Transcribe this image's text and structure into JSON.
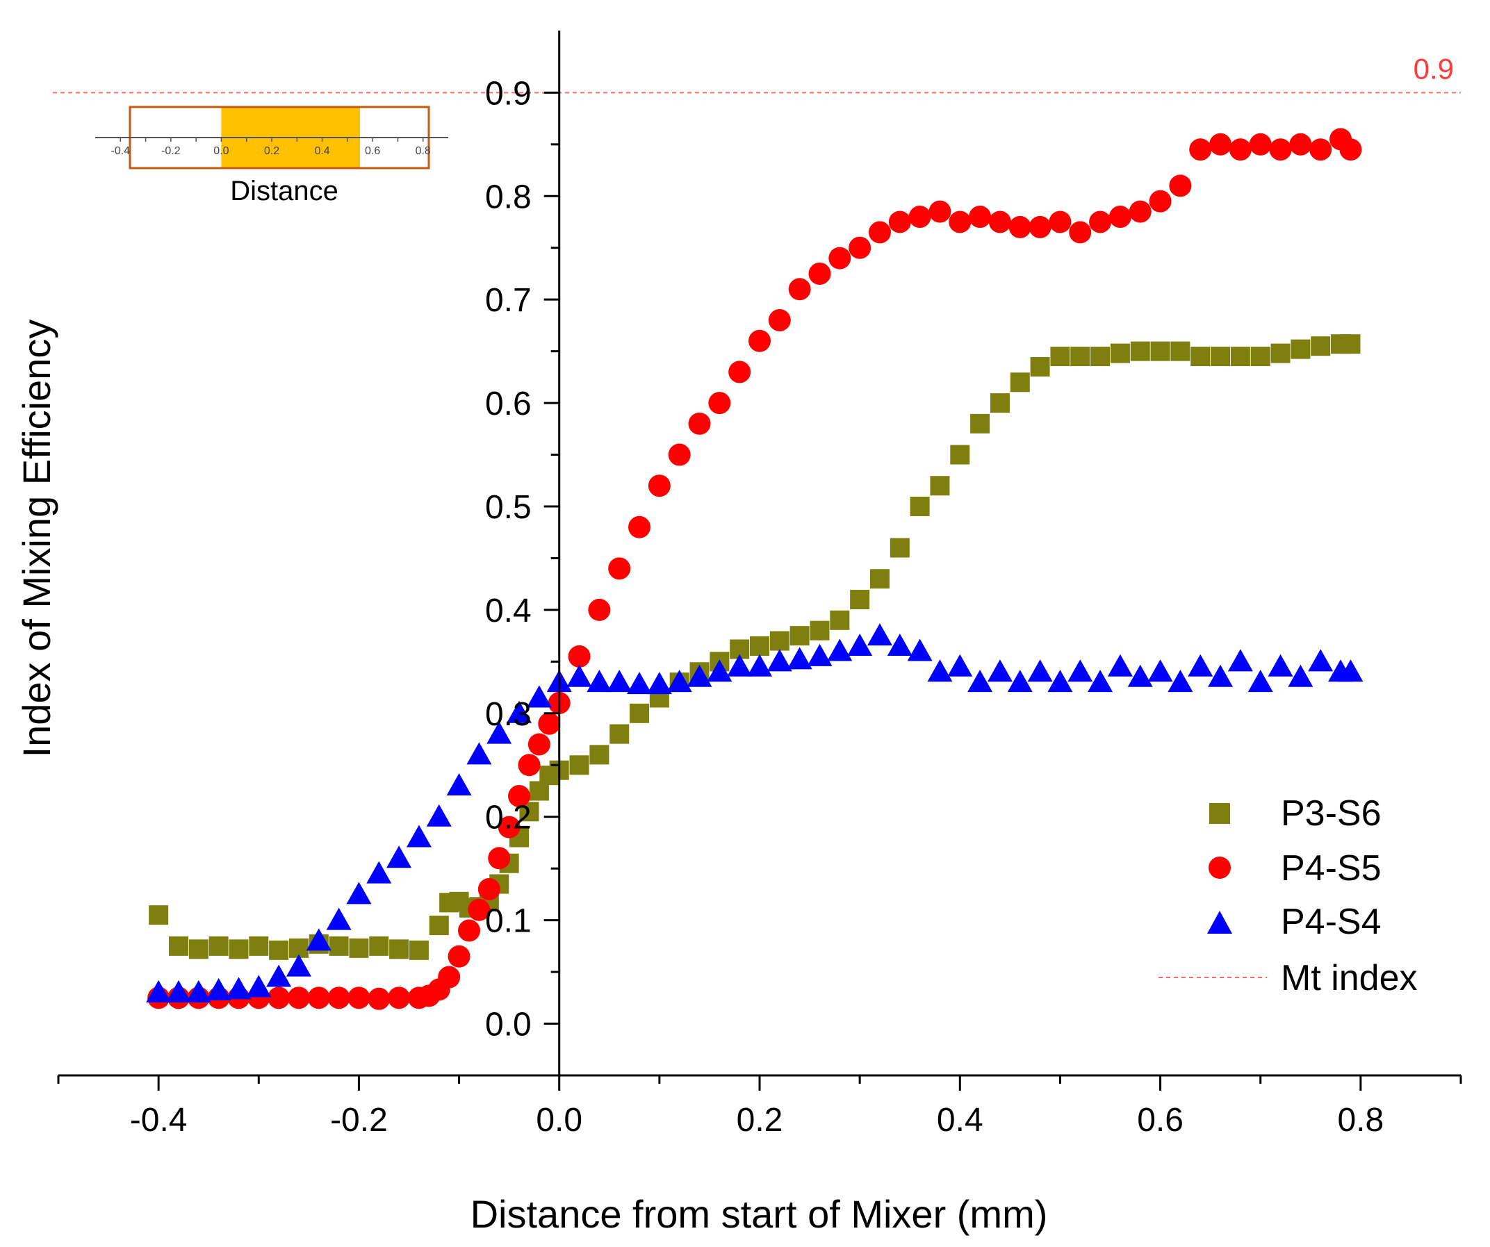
{
  "chart_data": {
    "type": "scatter",
    "title": "",
    "xlabel": "Distance from start of Mixer (mm)",
    "ylabel": "Index of Mixing Efficiency",
    "xlim": [
      -0.5,
      0.9
    ],
    "ylim": [
      -0.05,
      0.96
    ],
    "x_ticks": [
      -0.4,
      -0.2,
      0.0,
      0.2,
      0.4,
      0.6,
      0.8
    ],
    "x_tick_labels": [
      "-0.4",
      "-0.2",
      "0.0",
      "0.2",
      "0.4",
      "0.6",
      "0.8"
    ],
    "y_ticks": [
      0.0,
      0.1,
      0.2,
      0.3,
      0.4,
      0.5,
      0.6,
      0.7,
      0.8,
      0.9
    ],
    "y_tick_labels": [
      "0.0",
      "0.1",
      "0.2",
      "0.3",
      "0.4",
      "0.5",
      "0.6",
      "0.7",
      "0.8",
      "0.9"
    ],
    "legend_position": "bottom-right",
    "reference_line": {
      "name": "Mt index",
      "y": 0.9,
      "label": "0.9",
      "color": "#ff6b6b"
    },
    "series": [
      {
        "name": "P3-S6",
        "marker": "square",
        "color": "#7f7f0f",
        "x": [
          -0.4,
          -0.38,
          -0.36,
          -0.34,
          -0.32,
          -0.3,
          -0.28,
          -0.26,
          -0.24,
          -0.22,
          -0.2,
          -0.18,
          -0.16,
          -0.14,
          -0.12,
          -0.11,
          -0.1,
          -0.09,
          -0.08,
          -0.07,
          -0.06,
          -0.05,
          -0.04,
          -0.03,
          -0.02,
          -0.01,
          0.0,
          0.02,
          0.04,
          0.06,
          0.08,
          0.1,
          0.12,
          0.14,
          0.16,
          0.18,
          0.2,
          0.22,
          0.24,
          0.26,
          0.28,
          0.3,
          0.32,
          0.34,
          0.36,
          0.38,
          0.4,
          0.42,
          0.44,
          0.46,
          0.48,
          0.5,
          0.52,
          0.54,
          0.56,
          0.58,
          0.6,
          0.62,
          0.64,
          0.66,
          0.68,
          0.7,
          0.72,
          0.74,
          0.76,
          0.78,
          0.79
        ],
        "y": [
          0.105,
          0.075,
          0.072,
          0.075,
          0.072,
          0.075,
          0.071,
          0.073,
          0.077,
          0.075,
          0.073,
          0.075,
          0.072,
          0.071,
          0.095,
          0.117,
          0.118,
          0.112,
          0.113,
          0.118,
          0.135,
          0.155,
          0.18,
          0.205,
          0.225,
          0.24,
          0.245,
          0.25,
          0.26,
          0.28,
          0.3,
          0.315,
          0.33,
          0.34,
          0.35,
          0.362,
          0.365,
          0.37,
          0.375,
          0.38,
          0.39,
          0.41,
          0.43,
          0.46,
          0.5,
          0.52,
          0.55,
          0.58,
          0.6,
          0.62,
          0.635,
          0.645,
          0.645,
          0.645,
          0.648,
          0.65,
          0.65,
          0.65,
          0.645,
          0.645,
          0.645,
          0.645,
          0.648,
          0.652,
          0.655,
          0.657,
          0.657
        ]
      },
      {
        "name": "P4-S5",
        "marker": "circle",
        "color": "#ff0000",
        "x": [
          -0.4,
          -0.38,
          -0.36,
          -0.34,
          -0.32,
          -0.3,
          -0.28,
          -0.26,
          -0.24,
          -0.22,
          -0.2,
          -0.18,
          -0.16,
          -0.14,
          -0.13,
          -0.12,
          -0.11,
          -0.1,
          -0.09,
          -0.08,
          -0.07,
          -0.06,
          -0.05,
          -0.04,
          -0.03,
          -0.02,
          -0.01,
          0.0,
          0.02,
          0.04,
          0.06,
          0.08,
          0.1,
          0.12,
          0.14,
          0.16,
          0.18,
          0.2,
          0.22,
          0.24,
          0.26,
          0.28,
          0.3,
          0.32,
          0.34,
          0.36,
          0.38,
          0.4,
          0.42,
          0.44,
          0.46,
          0.48,
          0.5,
          0.52,
          0.54,
          0.56,
          0.58,
          0.6,
          0.62,
          0.64,
          0.66,
          0.68,
          0.7,
          0.72,
          0.74,
          0.76,
          0.78,
          0.79
        ],
        "y": [
          0.025,
          0.025,
          0.025,
          0.025,
          0.025,
          0.025,
          0.025,
          0.025,
          0.025,
          0.025,
          0.025,
          0.024,
          0.025,
          0.025,
          0.027,
          0.033,
          0.045,
          0.065,
          0.09,
          0.11,
          0.13,
          0.16,
          0.19,
          0.22,
          0.25,
          0.27,
          0.29,
          0.31,
          0.355,
          0.4,
          0.44,
          0.48,
          0.52,
          0.55,
          0.58,
          0.6,
          0.63,
          0.66,
          0.68,
          0.71,
          0.725,
          0.74,
          0.75,
          0.765,
          0.775,
          0.78,
          0.785,
          0.775,
          0.78,
          0.775,
          0.77,
          0.77,
          0.775,
          0.765,
          0.775,
          0.78,
          0.785,
          0.795,
          0.81,
          0.845,
          0.85,
          0.845,
          0.85,
          0.845,
          0.85,
          0.845,
          0.855,
          0.845
        ]
      },
      {
        "name": "P4-S4",
        "marker": "triangle",
        "color": "#0000ff",
        "x": [
          -0.4,
          -0.38,
          -0.36,
          -0.34,
          -0.32,
          -0.3,
          -0.28,
          -0.26,
          -0.24,
          -0.22,
          -0.2,
          -0.18,
          -0.16,
          -0.14,
          -0.12,
          -0.1,
          -0.08,
          -0.06,
          -0.04,
          -0.02,
          0.0,
          0.02,
          0.04,
          0.06,
          0.08,
          0.1,
          0.12,
          0.14,
          0.16,
          0.18,
          0.2,
          0.22,
          0.24,
          0.26,
          0.28,
          0.3,
          0.32,
          0.34,
          0.36,
          0.38,
          0.4,
          0.42,
          0.44,
          0.46,
          0.48,
          0.5,
          0.52,
          0.54,
          0.56,
          0.58,
          0.6,
          0.62,
          0.64,
          0.66,
          0.68,
          0.7,
          0.72,
          0.74,
          0.76,
          0.78,
          0.79
        ],
        "y": [
          0.03,
          0.03,
          0.03,
          0.032,
          0.033,
          0.035,
          0.045,
          0.055,
          0.08,
          0.1,
          0.125,
          0.145,
          0.16,
          0.18,
          0.2,
          0.23,
          0.26,
          0.28,
          0.3,
          0.315,
          0.33,
          0.335,
          0.33,
          0.33,
          0.328,
          0.328,
          0.33,
          0.335,
          0.34,
          0.345,
          0.345,
          0.35,
          0.352,
          0.355,
          0.36,
          0.365,
          0.375,
          0.365,
          0.36,
          0.34,
          0.345,
          0.33,
          0.34,
          0.33,
          0.34,
          0.33,
          0.34,
          0.33,
          0.345,
          0.335,
          0.34,
          0.33,
          0.345,
          0.335,
          0.35,
          0.33,
          0.345,
          0.335,
          0.35,
          0.34,
          0.34
        ]
      }
    ]
  },
  "inset": {
    "title": "Distance",
    "tick_labels": [
      "-0.4",
      "-0.2",
      "0.0",
      "0.2",
      "0.4",
      "0.6",
      "0.8"
    ],
    "range": [
      -0.5,
      0.9
    ],
    "highlight_range": [
      0.0,
      0.55
    ],
    "highlight_color": "#ffc000",
    "border_color": "#c55a11"
  },
  "legend": {
    "items": [
      {
        "label": "P3-S6"
      },
      {
        "label": "P4-S5"
      },
      {
        "label": "P4-S4"
      },
      {
        "label": "Mt index"
      }
    ]
  }
}
